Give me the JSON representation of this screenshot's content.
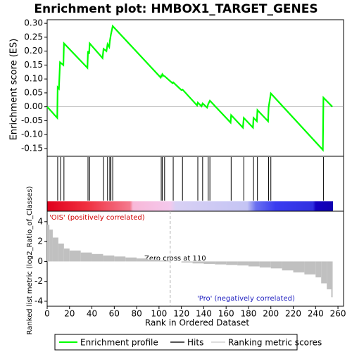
{
  "chart_data": [
    {
      "type": "line",
      "title": "Enrichment plot: HMBOX1_TARGET_GENES",
      "ylabel": "Enrichment score (ES)",
      "x": [
        0,
        9,
        9.4,
        10.5,
        11.5,
        14.5,
        15,
        36,
        36.5,
        37.5,
        38,
        49.5,
        50.4,
        53,
        54,
        55.5,
        56,
        57,
        58.6,
        101.5,
        102,
        102.5,
        103,
        104.5,
        105,
        112,
        112.7,
        120,
        121,
        134,
        134.7,
        138,
        139,
        143,
        144,
        145.5,
        164,
        164.5,
        175,
        175.8,
        184,
        184.5,
        187.5,
        188,
        197.5,
        198,
        200,
        246.5,
        247,
        255
      ],
      "series": [
        {
          "name": "Enrichment profile",
          "color": "#00ff00",
          "values": [
            0,
            -0.04,
            0.07,
            0.065,
            0.16,
            0.15,
            0.228,
            0.14,
            0.2,
            0.19,
            0.228,
            0.175,
            0.208,
            0.2,
            0.225,
            0.215,
            0.235,
            0.26,
            0.29,
            0.105,
            0.112,
            0.11,
            0.117,
            0.11,
            0.11,
            0.085,
            0.088,
            0.06,
            0.062,
            0.005,
            0.015,
            0.002,
            0.012,
            -0.003,
            0.01,
            0.022,
            -0.057,
            -0.03,
            -0.075,
            -0.04,
            -0.075,
            -0.04,
            -0.052,
            -0.012,
            -0.052,
            -0.002,
            0.048,
            -0.155,
            0.033,
            0
          ]
        }
      ],
      "xlim": [
        0,
        265
      ],
      "ylim": [
        -0.178,
        0.313
      ],
      "yticks": [
        {
          "value": -0.15,
          "label": "-0.15"
        },
        {
          "value": -0.1,
          "label": "-0.10"
        },
        -0.05,
        {
          "value": 0,
          "label": "0.00"
        },
        0.05,
        {
          "value": 0.1,
          "label": "0.10"
        },
        0.15,
        {
          "value": 0.2,
          "label": "0.20"
        },
        0.25,
        {
          "value": 0.3,
          "label": "0.30"
        }
      ]
    },
    {
      "type": "hits",
      "name": "Hits",
      "color": "#000000",
      "xlim": [
        0,
        265
      ],
      "x": [
        9.4,
        12,
        15,
        36.5,
        38,
        50.4,
        54,
        56,
        57,
        58.6,
        102,
        103,
        105,
        112.7,
        121,
        134.7,
        139,
        144,
        145.5,
        164.5,
        175.8,
        184.5,
        188,
        198,
        200,
        247
      ]
    },
    {
      "type": "bar",
      "name": "Ranking metric scores",
      "color": "#c0c0c0",
      "xlabel": "Rank in Ordered Dataset",
      "ylabel": "Ranked list metric (log2_Ratio_of_Classes)",
      "pos_label": "'OIS' (positively correlated)",
      "neg_label": "'Pro' (negatively correlated)",
      "zero_cross": 110,
      "zero_cross_label": "Zero cross at 110",
      "x": [
        0,
        2,
        5,
        10,
        15,
        20,
        30,
        40,
        50,
        60,
        70,
        80,
        90,
        100,
        110,
        120,
        130,
        140,
        150,
        160,
        170,
        180,
        190,
        200,
        210,
        220,
        230,
        240,
        245,
        250,
        254
      ],
      "values": [
        3.7,
        3.2,
        2.4,
        1.8,
        1.3,
        1.1,
        0.9,
        0.75,
        0.6,
        0.5,
        0.4,
        0.3,
        0.2,
        0.1,
        0,
        -0.1,
        -0.2,
        -0.25,
        -0.3,
        -0.35,
        -0.4,
        -0.5,
        -0.6,
        -0.7,
        -0.9,
        -1.1,
        -1.3,
        -1.6,
        -2.2,
        -2.8,
        -3.6
      ],
      "xlim": [
        0,
        265
      ],
      "ylim": [
        -4.5,
        5.05
      ],
      "xticks": [
        0,
        20,
        40,
        60,
        80,
        100,
        120,
        140,
        160,
        180,
        200,
        220,
        240,
        260
      ],
      "yticks": [
        -4,
        -2,
        0,
        2,
        4
      ]
    }
  ]
}
